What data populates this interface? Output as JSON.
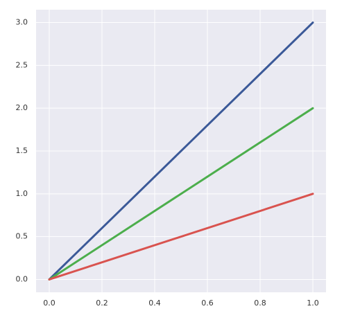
{
  "chart_data": {
    "type": "line",
    "x": [
      0,
      1
    ],
    "series": [
      {
        "color": "#3b5998",
        "values": [
          0,
          3
        ]
      },
      {
        "color": "#4cae4c",
        "values": [
          0,
          2
        ]
      },
      {
        "color": "#d9534f",
        "values": [
          0,
          1
        ]
      }
    ],
    "xlim": [
      -0.05,
      1.05
    ],
    "ylim": [
      -0.15,
      3.15
    ],
    "xticks": [
      {
        "value": 0,
        "label": "0.0"
      },
      {
        "value": 0.2,
        "label": "0.2"
      },
      {
        "value": 0.4,
        "label": "0.4"
      },
      {
        "value": 0.6,
        "label": "0.6"
      },
      {
        "value": 0.8,
        "label": "0.8"
      },
      {
        "value": 1,
        "label": "1.0"
      }
    ],
    "yticks": [
      {
        "value": 0,
        "label": "0.0"
      },
      {
        "value": 0.5,
        "label": "0.5"
      },
      {
        "value": 1,
        "label": "1.0"
      },
      {
        "value": 1.5,
        "label": "1.5"
      },
      {
        "value": 2,
        "label": "2.0"
      },
      {
        "value": 2.5,
        "label": "2.5"
      },
      {
        "value": 3,
        "label": "3.0"
      }
    ],
    "grid": true,
    "background": "#eaeaf2"
  }
}
